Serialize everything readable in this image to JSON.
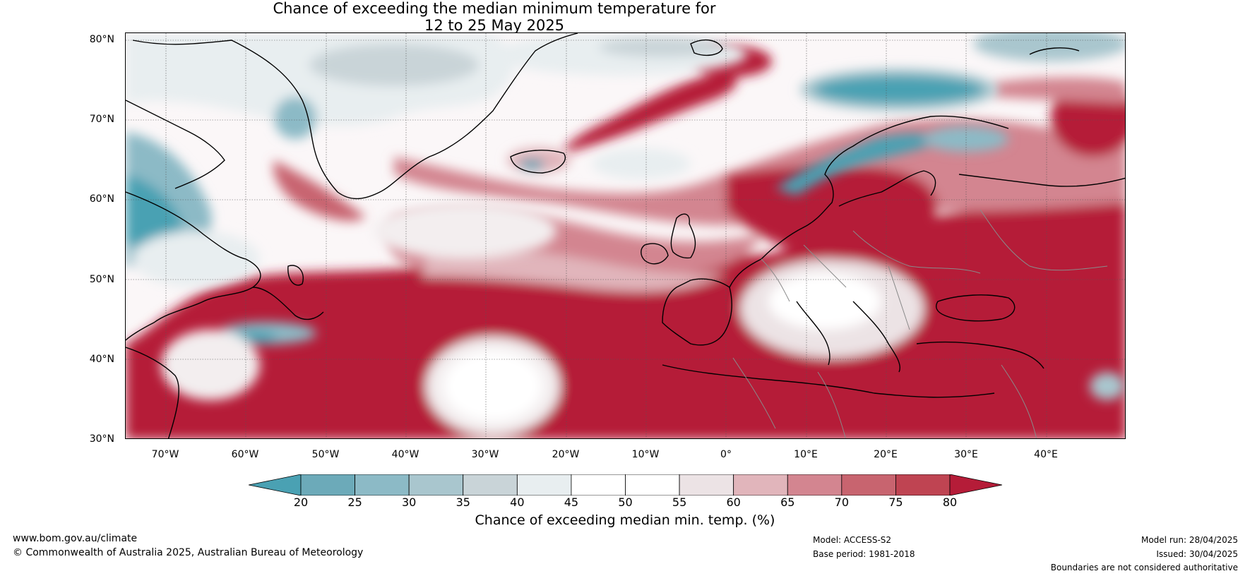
{
  "title": {
    "line1": "Chance of exceeding the median minimum temperature for",
    "line2": "12 to 25 May 2025"
  },
  "map": {
    "lat_labels": [
      "80°N",
      "70°N",
      "60°N",
      "50°N",
      "40°N",
      "30°N"
    ],
    "lon_labels": [
      "70°W",
      "60°W",
      "50°W",
      "40°W",
      "30°W",
      "20°W",
      "10°W",
      "0°",
      "10°E",
      "20°E",
      "30°E",
      "40°E"
    ],
    "extent": {
      "lon_min": -75,
      "lon_max": 50,
      "lat_min": 30,
      "lat_max": 81
    }
  },
  "colorbar": {
    "ticks": [
      "20",
      "25",
      "30",
      "35",
      "40",
      "45",
      "50",
      "55",
      "60",
      "65",
      "70",
      "75",
      "80"
    ],
    "colors": [
      "#4aa1b3",
      "#6caab9",
      "#8cbac6",
      "#a9c6ce",
      "#c9d4d8",
      "#e8eef0",
      "#ffffff",
      "#ffffff",
      "#ece3e5",
      "#e1b5bb",
      "#d38590",
      "#c8646f",
      "#bf4452",
      "#b51c38"
    ],
    "label": "Chance of exceeding median min. temp. (%)"
  },
  "footer": {
    "website": "www.bom.gov.au/climate",
    "copyright": "© Commonwealth of Australia 2025, Australian Bureau of Meteorology",
    "model": "Model: ACCESS-S2",
    "base_period": "Base period: 1981-2018",
    "model_run": "Model run: 28/04/2025",
    "issued": "Issued: 30/04/2025",
    "disclaimer": "Boundaries are not considered authoritative"
  }
}
